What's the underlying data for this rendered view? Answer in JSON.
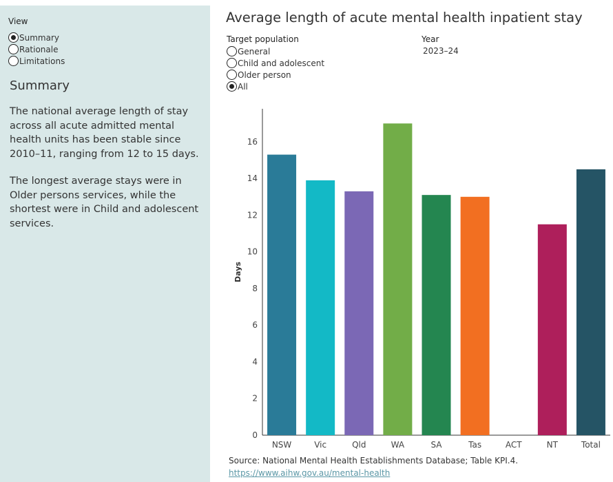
{
  "sidebar": {
    "view_label": "View",
    "view_options": [
      {
        "label": "Summary",
        "checked": true
      },
      {
        "label": "Rationale",
        "checked": false
      },
      {
        "label": "Limitations",
        "checked": false
      }
    ],
    "summary_heading": "Summary",
    "paragraphs": [
      "The national average length of stay across all acute admitted mental health units has been stable since 2010–11, ranging from 12 to 15 days.",
      "The longest average stays were in Older persons services, while the shortest were in Child and adolescent services."
    ]
  },
  "header": {
    "title": "Average length of acute mental health inpatient stay"
  },
  "filters": {
    "target_population_label": "Target population",
    "target_population_options": [
      {
        "label": "General",
        "checked": false
      },
      {
        "label": "Child and adolescent",
        "checked": false
      },
      {
        "label": "Older person",
        "checked": false
      },
      {
        "label": "All",
        "checked": true
      }
    ],
    "year_label": "Year",
    "year_value": "2023–24"
  },
  "chart_data": {
    "type": "bar",
    "title": "Average length of acute mental health inpatient stay",
    "xlabel": "",
    "ylabel": "Days",
    "ylim": [
      0,
      17.8
    ],
    "yticks": [
      0,
      2,
      4,
      6,
      8,
      10,
      12,
      14,
      16
    ],
    "grid": false,
    "categories": [
      "NSW",
      "Vic",
      "Qld",
      "WA",
      "SA",
      "Tas",
      "ACT",
      "NT",
      "Total"
    ],
    "values": [
      15.3,
      13.9,
      13.3,
      17.0,
      13.1,
      13.0,
      null,
      11.5,
      14.5
    ],
    "colors": [
      "#2a7b98",
      "#13b9c6",
      "#7b68b5",
      "#72ad48",
      "#248650",
      "#f26f21",
      "#cccccc",
      "#ae1f5b",
      "#255465"
    ]
  },
  "footer": {
    "source": "Source: National Mental Health Establishments Database; Table KPI.4.",
    "link": "https://www.aihw.gov.au/mental-health"
  }
}
